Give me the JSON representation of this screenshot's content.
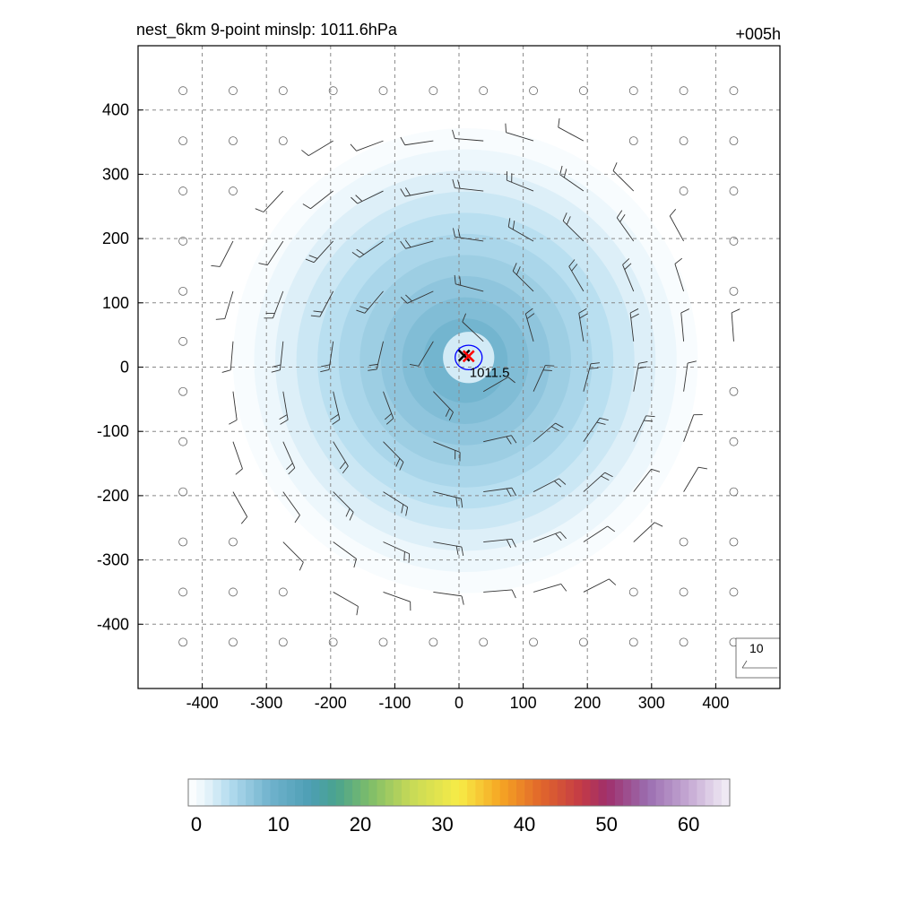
{
  "chart_data": {
    "type": "heatmap",
    "title": "nest_6km  9-point minslp: 1011.6hPa",
    "forecast_hour": "+005h",
    "xlabel": "",
    "ylabel": "",
    "xlim": [
      -500,
      500
    ],
    "ylim": [
      -500,
      500
    ],
    "x_ticks": [
      -400,
      -300,
      -200,
      -100,
      0,
      100,
      200,
      300,
      400
    ],
    "y_ticks": [
      400,
      300,
      200,
      100,
      0,
      -100,
      -200,
      -300,
      -400
    ],
    "grid": true,
    "field": {
      "center": [
        10,
        10
      ],
      "max_value": 12,
      "radius_of_zero": 395
    },
    "pressure_contour": {
      "label": "1011.5",
      "center": [
        15,
        15
      ],
      "radius": 20,
      "color": "#0000ff"
    },
    "center_markers": [
      {
        "type": "x",
        "color": "#000000",
        "x": 8,
        "y": 18
      },
      {
        "type": "x",
        "color": "#ff0000",
        "x": 15,
        "y": 17
      }
    ],
    "wind_barbs": {
      "spacing_km": 78,
      "calm_radius_km": 420,
      "reference_label": "10"
    },
    "colorbar": {
      "min": 0,
      "max": 66,
      "ticks": [
        0,
        10,
        20,
        30,
        40,
        50,
        60
      ],
      "stops": [
        {
          "v": 0,
          "c": "#ffffff"
        },
        {
          "v": 2,
          "c": "#eaf5fb"
        },
        {
          "v": 5,
          "c": "#b4dcef"
        },
        {
          "v": 10,
          "c": "#6fb2cd"
        },
        {
          "v": 15,
          "c": "#4c9eb3"
        },
        {
          "v": 18,
          "c": "#4aa38e"
        },
        {
          "v": 22,
          "c": "#7cbc6a"
        },
        {
          "v": 27,
          "c": "#c5d957"
        },
        {
          "v": 33,
          "c": "#f7ec47"
        },
        {
          "v": 38,
          "c": "#f6a623"
        },
        {
          "v": 43,
          "c": "#e1662b"
        },
        {
          "v": 48,
          "c": "#c33a47"
        },
        {
          "v": 51,
          "c": "#9f2f6b"
        },
        {
          "v": 56,
          "c": "#9b6db0"
        },
        {
          "v": 61,
          "c": "#c5a9d3"
        },
        {
          "v": 66,
          "c": "#f4f0f8"
        }
      ]
    }
  }
}
